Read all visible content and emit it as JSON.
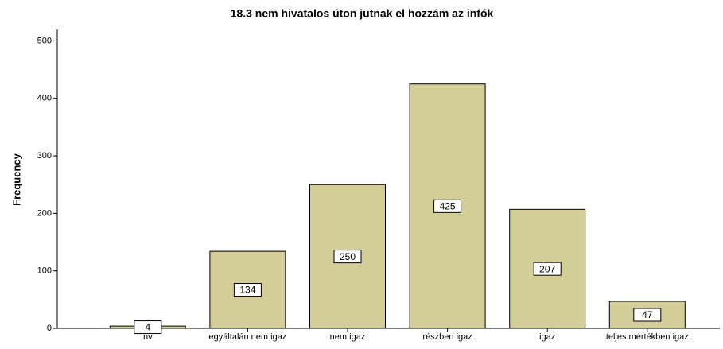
{
  "chart_data": {
    "type": "bar",
    "title": "18.3 nem hivatalos úton jutnak el hozzám az infók",
    "y_label": "Frequency",
    "categories": [
      "nv",
      "egyáltalán nem igaz",
      "nem igaz",
      "részben igaz",
      "igaz",
      "teljes mértékben igaz"
    ],
    "values": [
      4,
      134,
      250,
      425,
      207,
      47
    ],
    "color": "#d3ce97",
    "ylim": [
      0,
      520
    ],
    "yticks": [
      0,
      100,
      200,
      300,
      400,
      500
    ],
    "grid": false
  }
}
